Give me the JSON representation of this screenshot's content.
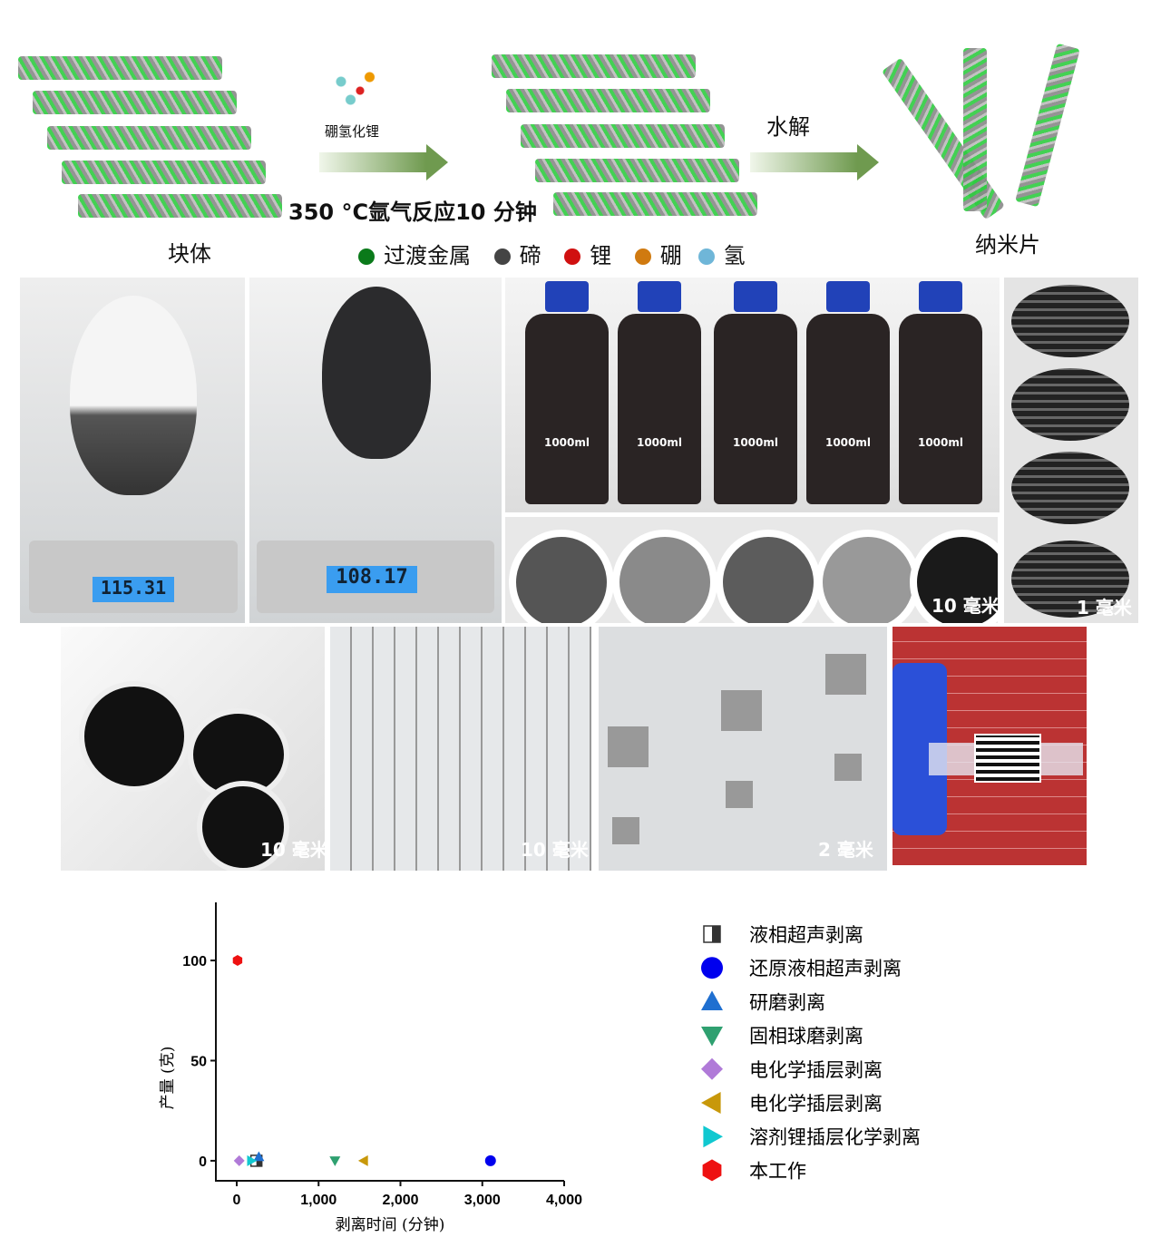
{
  "schematic": {
    "reagent": "硼氢化锂",
    "condition": "350 °C氩气反应10 分钟",
    "hydrolysis": "水解",
    "bulk_label": "块体",
    "nanosheet_label": "纳米片",
    "legend": [
      {
        "label": "过渡金属",
        "color": "#0a7a1a"
      },
      {
        "label": "碲",
        "color": "#444444"
      },
      {
        "label": "锂",
        "color": "#d01010"
      },
      {
        "label": "硼",
        "color": "#d07a10"
      },
      {
        "label": "氢",
        "color": "#6fb6d8"
      }
    ]
  },
  "photos": {
    "scale1_reading": "115.31",
    "scale2_reading": "108.17",
    "bottle_label": "1000ml",
    "discs_scale": "10 毫米",
    "grid_scale": "1 毫米",
    "row2_scales": [
      "10 毫米",
      "10 毫米",
      "2 毫米"
    ]
  },
  "chart_data": {
    "type": "scatter",
    "xlabel": "剥离时间 (分钟)",
    "ylabel": "产量 (克)",
    "xlim": [
      -255,
      4000
    ],
    "ylim": [
      -10,
      129
    ],
    "xticks": [
      0,
      1000,
      2000,
      3000,
      4000
    ],
    "xtick_labels": [
      "0",
      "1,000",
      "2,000",
      "3,000",
      "4,000"
    ],
    "yticks": [
      0,
      50,
      100
    ],
    "ytick_labels": [
      "0",
      "50",
      "100"
    ],
    "grid": false,
    "legend_position": "right",
    "series": [
      {
        "name": "液相超声剥离",
        "marker": "half-square",
        "color": "#333333",
        "x": [
          240
        ],
        "y": [
          0
        ]
      },
      {
        "name": "还原液相超声剥离",
        "marker": "circle",
        "color": "#0000ee",
        "x": [
          3100
        ],
        "y": [
          0
        ]
      },
      {
        "name": "研磨剥离",
        "marker": "triangle-up",
        "color": "#1f6fd0",
        "x": [
          270
        ],
        "y": [
          2
        ]
      },
      {
        "name": "固相球磨剥离",
        "marker": "triangle-down",
        "color": "#2fa070",
        "x": [
          1200
        ],
        "y": [
          0
        ]
      },
      {
        "name": "电化学插层剥离",
        "marker": "diamond",
        "color": "#b07ad8",
        "x": [
          30
        ],
        "y": [
          0
        ]
      },
      {
        "name": "电化学插层剥离",
        "marker": "triangle-left",
        "color": "#c8980a",
        "x": [
          1550
        ],
        "y": [
          0
        ]
      },
      {
        "name": "溶剂锂插层化学剥离",
        "marker": "triangle-right",
        "color": "#10c8d0",
        "x": [
          180
        ],
        "y": [
          0
        ]
      },
      {
        "name": "本工作",
        "marker": "hexagon",
        "color": "#ee1111",
        "x": [
          10
        ],
        "y": [
          100
        ]
      }
    ]
  }
}
